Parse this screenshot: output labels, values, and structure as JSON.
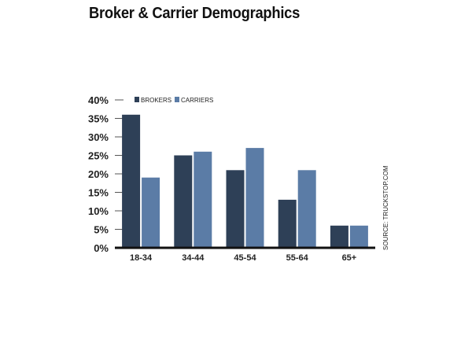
{
  "title": "Broker & Carrier Demographics",
  "source": "SOURCE: TRUCKSTOP.COM",
  "colors": {
    "brokers": "#2e4057",
    "carriers": "#5b7ca6",
    "axis": "#111111",
    "tick": "#555555"
  },
  "chart_data": {
    "type": "bar",
    "title": "Broker & Carrier Demographics",
    "categories": [
      "18-34",
      "34-44",
      "45-54",
      "55-64",
      "65+"
    ],
    "series": [
      {
        "name": "BROKERS",
        "values": [
          36,
          25,
          21,
          13,
          6
        ]
      },
      {
        "name": "CARRIERS",
        "values": [
          19,
          26,
          27,
          21,
          6
        ]
      }
    ],
    "ylim": [
      0,
      40
    ],
    "yticks": [
      "0%",
      "5%",
      "10%",
      "15%",
      "20%",
      "25%",
      "30%",
      "35%",
      "40%"
    ],
    "ytick_values": [
      0,
      5,
      10,
      15,
      20,
      25,
      30,
      35,
      40
    ],
    "grid": false,
    "legend_position": "top-left"
  }
}
